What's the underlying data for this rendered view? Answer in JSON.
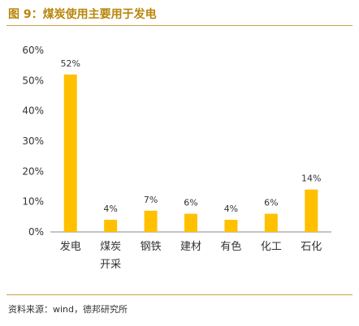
{
  "figure": {
    "title": "图 9：煤炭使用主要用于发电",
    "source": "资料来源：wind，德邦研究所"
  },
  "colors": {
    "bar": "#FFC000",
    "title": "#B8860B",
    "rule": "#C9A14A"
  },
  "chart_data": {
    "type": "bar",
    "title": "",
    "xlabel": "",
    "ylabel": "",
    "categories": [
      "发电",
      "煤炭开采",
      "钢铁",
      "建材",
      "有色",
      "化工",
      "石化"
    ],
    "values": [
      52,
      4,
      7,
      6,
      4,
      6,
      14
    ],
    "data_labels": [
      "52%",
      "4%",
      "7%",
      "6%",
      "4%",
      "6%",
      "14%"
    ],
    "ylim": [
      0,
      60
    ],
    "yticks": [
      0,
      10,
      20,
      30,
      40,
      50,
      60
    ],
    "ytick_labels": [
      "0%",
      "10%",
      "20%",
      "30%",
      "40%",
      "50%",
      "60%"
    ],
    "grid": false,
    "legend": "none"
  }
}
